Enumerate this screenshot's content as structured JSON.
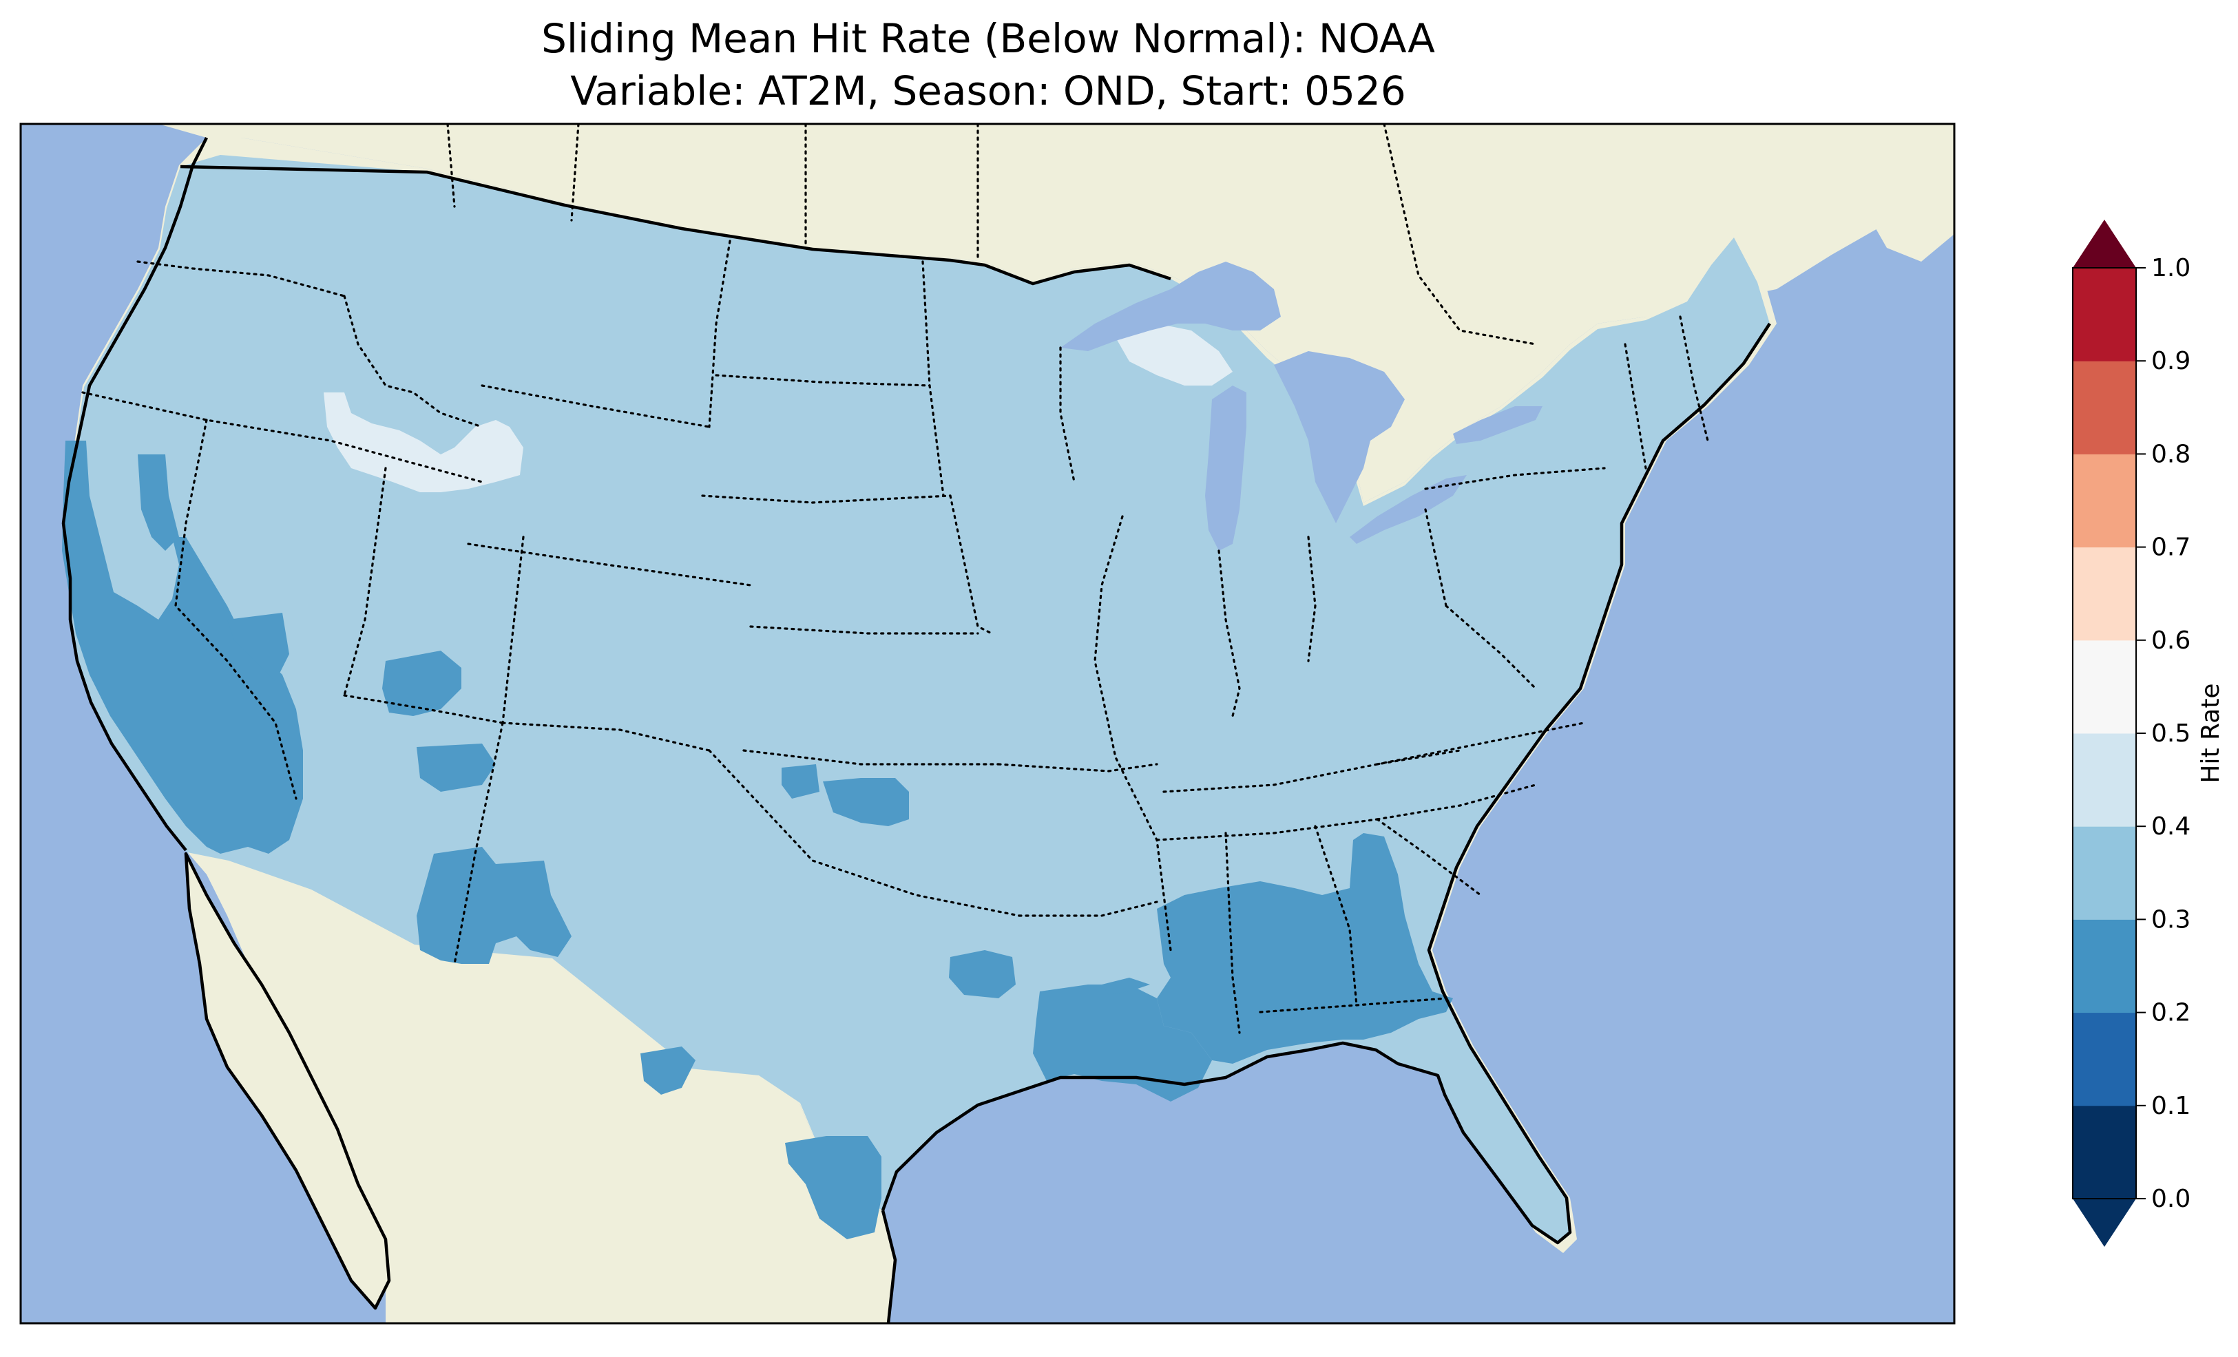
{
  "title": {
    "line1": "Sliding Mean Hit Rate (Below Normal): NOAA",
    "line2": "Variable: AT2M, Season: OND, Start: 0526"
  },
  "colorbar": {
    "label": "Hit Rate",
    "ticks": [
      "0.0",
      "0.1",
      "0.2",
      "0.3",
      "0.4",
      "0.5",
      "0.6",
      "0.7",
      "0.8",
      "0.9",
      "1.0"
    ],
    "colors": [
      "#053061",
      "#2166ac",
      "#4393c3",
      "#92c5de",
      "#d1e5f0",
      "#f7f7f7",
      "#fddbc7",
      "#f4a582",
      "#d6604d",
      "#b2182b",
      "#67001f"
    ],
    "extend": "both"
  },
  "map": {
    "colors": {
      "ocean": "#97b6e1",
      "land": "#efefdb",
      "range_0_2_0_3": "#4f9ac7",
      "range_0_3_0_4": "#a8cfe3",
      "range_0_4_0_5": "#e1edf4"
    },
    "dominant_hit_rate_range": "0.3–0.4",
    "regions_0_2_0_3": [
      "California Central Valley",
      "Southern Nevada",
      "Southern Utah",
      "Arizona/New Mexico border",
      "Oklahoma",
      "East Texas",
      "Louisiana",
      "Mississippi",
      "Alabama",
      "Georgia",
      "South Texas"
    ],
    "regions_0_4_0_5": [
      "Central Idaho / Western Montana",
      "Upper Peninsula of Michigan"
    ]
  }
}
